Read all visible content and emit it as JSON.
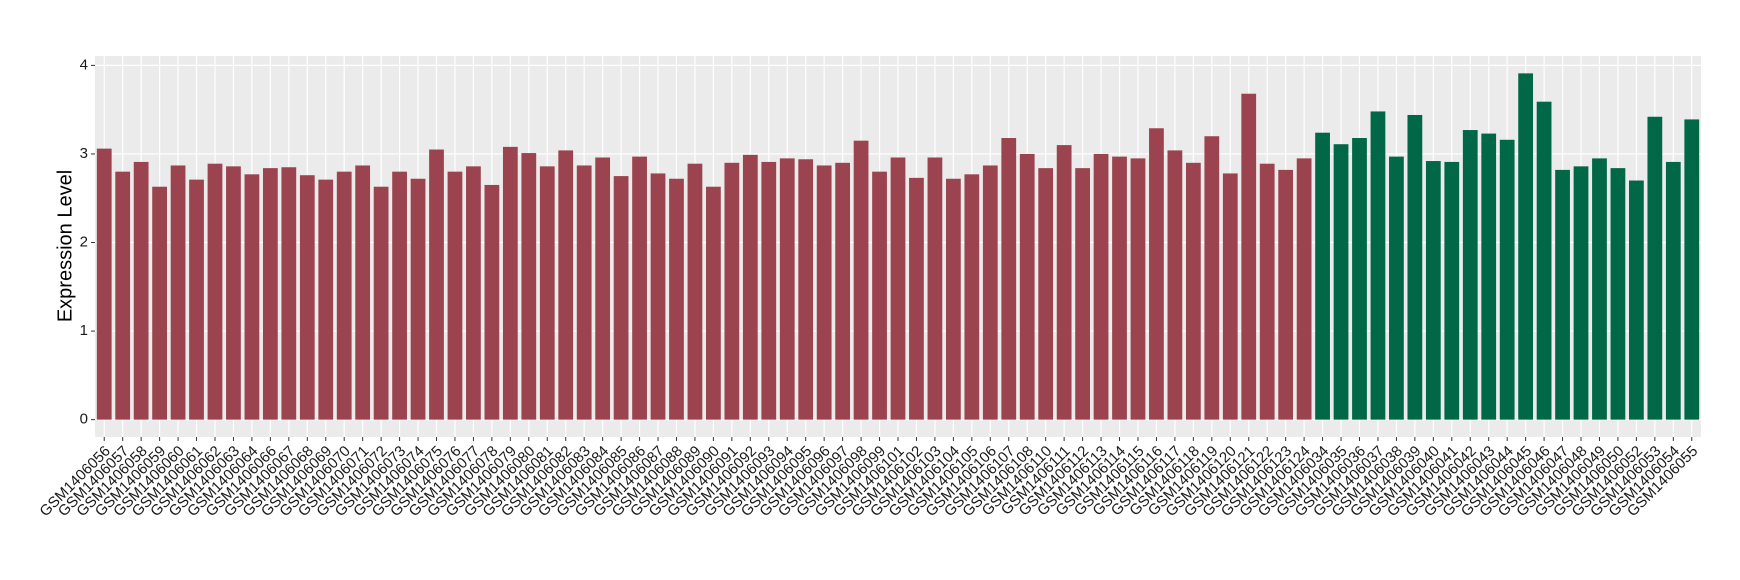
{
  "chart_data": {
    "type": "bar",
    "y_label": "Expression Level",
    "categories": [
      "GSM1406056",
      "GSM1406057",
      "GSM1406058",
      "GSM1406059",
      "GSM1406060",
      "GSM1406061",
      "GSM1406062",
      "GSM1406063",
      "GSM1406064",
      "GSM1406066",
      "GSM1406067",
      "GSM1406068",
      "GSM1406069",
      "GSM1406070",
      "GSM1406071",
      "GSM1406072",
      "GSM1406073",
      "GSM1406074",
      "GSM1406075",
      "GSM1406076",
      "GSM1406077",
      "GSM1406078",
      "GSM1406079",
      "GSM1406080",
      "GSM1406081",
      "GSM1406082",
      "GSM1406083",
      "GSM1406084",
      "GSM1406085",
      "GSM1406086",
      "GSM1406087",
      "GSM1406088",
      "GSM1406089",
      "GSM1406090",
      "GSM1406091",
      "GSM1406092",
      "GSM1406093",
      "GSM1406094",
      "GSM1406095",
      "GSM1406096",
      "GSM1406097",
      "GSM1406098",
      "GSM1406099",
      "GSM1406101",
      "GSM1406102",
      "GSM1406103",
      "GSM1406104",
      "GSM1406105",
      "GSM1406106",
      "GSM1406107",
      "GSM1406108",
      "GSM1406110",
      "GSM1406111",
      "GSM1406112",
      "GSM1406113",
      "GSM1406114",
      "GSM1406115",
      "GSM1406116",
      "GSM1406117",
      "GSM1406118",
      "GSM1406119",
      "GSM1406120",
      "GSM1406121",
      "GSM1406122",
      "GSM1406123",
      "GSM1406124",
      "GSM1406034",
      "GSM1406035",
      "GSM1406036",
      "GSM1406037",
      "GSM1406038",
      "GSM1406039",
      "GSM1406040",
      "GSM1406041",
      "GSM1406042",
      "GSM1406043",
      "GSM1406044",
      "GSM1406045",
      "GSM1406046",
      "GSM1406047",
      "GSM1406048",
      "GSM1406049",
      "GSM1406050",
      "GSM1406052",
      "GSM1406053",
      "GSM1406054",
      "GSM1406055"
    ],
    "values": [
      3.06,
      2.8,
      2.91,
      2.63,
      2.87,
      2.71,
      2.89,
      2.86,
      2.77,
      2.84,
      2.85,
      2.76,
      2.71,
      2.8,
      2.87,
      2.63,
      2.8,
      2.72,
      3.05,
      2.8,
      2.86,
      2.65,
      3.08,
      3.01,
      2.86,
      3.04,
      2.87,
      2.96,
      2.75,
      2.97,
      2.78,
      2.72,
      2.89,
      2.63,
      2.9,
      2.99,
      2.91,
      2.95,
      2.94,
      2.87,
      2.9,
      3.15,
      2.8,
      2.96,
      2.73,
      2.96,
      2.72,
      2.77,
      2.87,
      3.18,
      3.0,
      2.84,
      3.1,
      2.84,
      3.0,
      2.97,
      2.95,
      3.29,
      3.04,
      2.9,
      3.2,
      2.78,
      3.68,
      2.89,
      2.82,
      2.95,
      3.24,
      3.11,
      3.18,
      3.48,
      2.97,
      3.44,
      2.92,
      2.91,
      3.27,
      3.23,
      3.16,
      3.91,
      3.59,
      2.82,
      2.86,
      2.95,
      2.84,
      2.7,
      3.42,
      2.91,
      3.39
    ],
    "colors": [
      "#9b4450",
      "#9b4450",
      "#9b4450",
      "#9b4450",
      "#9b4450",
      "#9b4450",
      "#9b4450",
      "#9b4450",
      "#9b4450",
      "#9b4450",
      "#9b4450",
      "#9b4450",
      "#9b4450",
      "#9b4450",
      "#9b4450",
      "#9b4450",
      "#9b4450",
      "#9b4450",
      "#9b4450",
      "#9b4450",
      "#9b4450",
      "#9b4450",
      "#9b4450",
      "#9b4450",
      "#9b4450",
      "#9b4450",
      "#9b4450",
      "#9b4450",
      "#9b4450",
      "#9b4450",
      "#9b4450",
      "#9b4450",
      "#9b4450",
      "#9b4450",
      "#9b4450",
      "#9b4450",
      "#9b4450",
      "#9b4450",
      "#9b4450",
      "#9b4450",
      "#9b4450",
      "#9b4450",
      "#9b4450",
      "#9b4450",
      "#9b4450",
      "#9b4450",
      "#9b4450",
      "#9b4450",
      "#9b4450",
      "#9b4450",
      "#9b4450",
      "#9b4450",
      "#9b4450",
      "#9b4450",
      "#9b4450",
      "#9b4450",
      "#9b4450",
      "#9b4450",
      "#9b4450",
      "#9b4450",
      "#9b4450",
      "#9b4450",
      "#9b4450",
      "#9b4450",
      "#9b4450",
      "#9b4450",
      "#006847",
      "#006847",
      "#006847",
      "#006847",
      "#006847",
      "#006847",
      "#006847",
      "#006847",
      "#006847",
      "#006847",
      "#006847",
      "#006847",
      "#006847",
      "#006847",
      "#006847",
      "#006847",
      "#006847",
      "#006847",
      "#006847",
      "#006847",
      "#006847"
    ],
    "ylim": [
      -0.196,
      4.106
    ],
    "yticks": [
      0,
      1,
      2,
      3,
      4
    ],
    "grid": true
  }
}
